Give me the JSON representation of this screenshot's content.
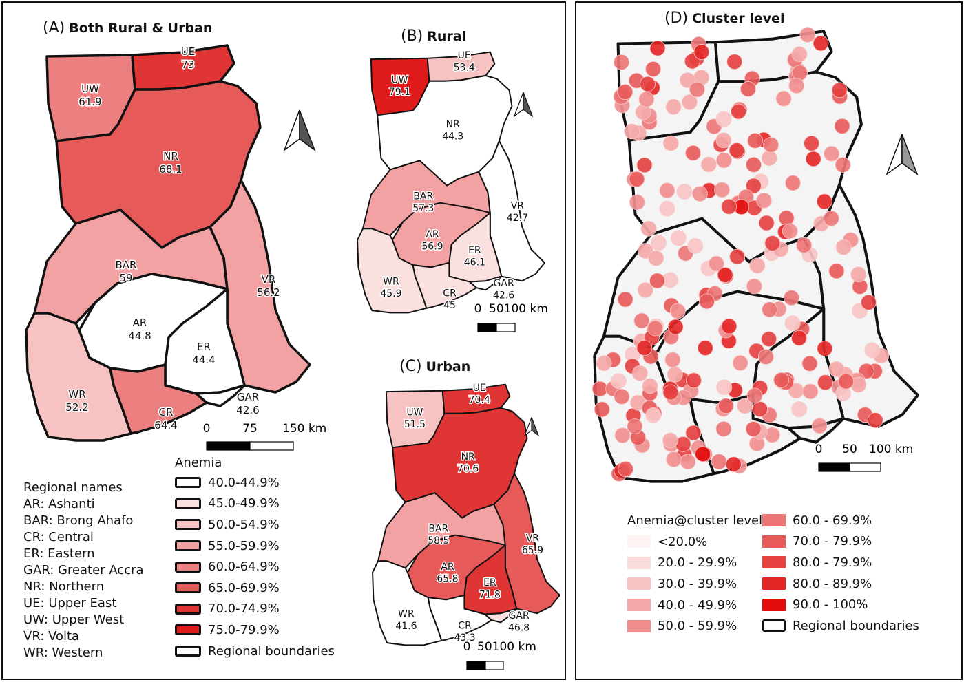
{
  "panels": {
    "A": {
      "letter": "(A)",
      "title": "Both Rural & Urban"
    },
    "B": {
      "letter": "(B)",
      "title": "Rural"
    },
    "C": {
      "letter": "(C)",
      "title": "Urban"
    },
    "D": {
      "letter": "(D)",
      "title": "Cluster level"
    }
  },
  "regions_A": [
    {
      "code": "UE",
      "value": "73"
    },
    {
      "code": "UW",
      "value": "61.9"
    },
    {
      "code": "NR",
      "value": "68.1"
    },
    {
      "code": "BAR",
      "value": "59"
    },
    {
      "code": "VR",
      "value": "56.2"
    },
    {
      "code": "AR",
      "value": "44.8"
    },
    {
      "code": "ER",
      "value": "44.4"
    },
    {
      "code": "WR",
      "value": "52.2"
    },
    {
      "code": "CR",
      "value": "64.4"
    },
    {
      "code": "GAR",
      "value": "42.6"
    }
  ],
  "regions_B": [
    {
      "code": "UE",
      "value": "53.4"
    },
    {
      "code": "UW",
      "value": "79.1"
    },
    {
      "code": "NR",
      "value": "44.3"
    },
    {
      "code": "BAR",
      "value": "57.3"
    },
    {
      "code": "VR",
      "value": "42.7"
    },
    {
      "code": "AR",
      "value": "56.9"
    },
    {
      "code": "ER",
      "value": "46.1"
    },
    {
      "code": "WR",
      "value": "45.9"
    },
    {
      "code": "CR",
      "value": "45"
    },
    {
      "code": "GAR",
      "value": "42.6"
    }
  ],
  "regions_C": [
    {
      "code": "UE",
      "value": "70.4"
    },
    {
      "code": "UW",
      "value": "51.5"
    },
    {
      "code": "NR",
      "value": "70.6"
    },
    {
      "code": "BAR",
      "value": "58.5"
    },
    {
      "code": "VR",
      "value": "65.9"
    },
    {
      "code": "AR",
      "value": "65.8"
    },
    {
      "code": "ER",
      "value": "71.8"
    },
    {
      "code": "WR",
      "value": "41.6"
    },
    {
      "code": "CR",
      "value": "43.3"
    },
    {
      "code": "GAR",
      "value": "46.8"
    }
  ],
  "scalebars": {
    "A": {
      "ticks": [
        "0",
        "75",
        "150 km"
      ]
    },
    "B": {
      "ticks": [
        "0",
        "50100 km"
      ]
    },
    "C": {
      "ticks": [
        "0",
        "50100 km"
      ]
    },
    "D": {
      "ticks": [
        "0",
        "50",
        "100 km"
      ]
    }
  },
  "legend_regional": {
    "title": "Regional names",
    "items": [
      "AR: Ashanti",
      "BAR: Brong Ahafo",
      "CR: Central",
      "ER: Eastern",
      "GAR: Greater Accra",
      "NR: Northern",
      "UE: Upper East",
      "UW: Upper West",
      "VR: Volta",
      "WR: Western"
    ]
  },
  "legend_anemia": {
    "title": "Anemia",
    "items": [
      {
        "label": "40.0-44.9%",
        "color": "#ffffff"
      },
      {
        "label": "45.0-49.9%",
        "color": "#fbe0e0"
      },
      {
        "label": "50.0-54.9%",
        "color": "#f7c2c2"
      },
      {
        "label": "55.0-59.9%",
        "color": "#f2a2a2"
      },
      {
        "label": "60.0-64.9%",
        "color": "#ec7f7f"
      },
      {
        "label": "65.0-69.9%",
        "color": "#e65a5a"
      },
      {
        "label": "70.0-74.9%",
        "color": "#df3535"
      },
      {
        "label": "75.0-79.9%",
        "color": "#e01b1b"
      },
      {
        "label": "Regional boundaries",
        "color": "#ffffff"
      }
    ]
  },
  "legend_cluster": {
    "title": "Anemia@cluster level",
    "col1": [
      {
        "label": "<20.0%",
        "color": "#fdf3f3"
      },
      {
        "label": "20.0 - 29.9%",
        "color": "#fbdcdc"
      },
      {
        "label": "30.0 - 39.9%",
        "color": "#f8c4c4"
      },
      {
        "label": "40.0 - 49.9%",
        "color": "#f4a8a8"
      },
      {
        "label": "50.0 - 59.9%",
        "color": "#f08e8e"
      }
    ],
    "col2": [
      {
        "label": "60.0 - 69.9%",
        "color": "#ec7575"
      },
      {
        "label": "70.0 - 79.9%",
        "color": "#e85a5a"
      },
      {
        "label": "80.0 - 79.9%",
        "color": "#e54141"
      },
      {
        "label": "80.0 - 89.9%",
        "color": "#e32727"
      },
      {
        "label": "90.0 - 100%",
        "color": "#e30d0d"
      },
      {
        "label": "Regional boundaries",
        "color": "#ffffff"
      }
    ]
  },
  "fills": {
    "A": {
      "UE": "#df3535",
      "UW": "#ec7f7f",
      "NR": "#e65a5a",
      "BAR": "#f2a2a2",
      "VR": "#f2a2a2",
      "AR": "#ffffff",
      "ER": "#ffffff",
      "WR": "#f7c2c2",
      "CR": "#ec7f7f",
      "GAR": "#ffffff"
    },
    "B": {
      "UE": "#f7c2c2",
      "UW": "#e01b1b",
      "NR": "#ffffff",
      "BAR": "#f2a2a2",
      "VR": "#ffffff",
      "AR": "#f2a2a2",
      "ER": "#fbe0e0",
      "WR": "#fbe0e0",
      "CR": "#fbe0e0",
      "GAR": "#ffffff"
    },
    "C": {
      "UE": "#df3535",
      "UW": "#f7c2c2",
      "NR": "#df3535",
      "BAR": "#f2a2a2",
      "VR": "#e65a5a",
      "AR": "#e65a5a",
      "ER": "#df3535",
      "WR": "#ffffff",
      "CR": "#ffffff",
      "GAR": "#fbe0e0"
    },
    "D_land": "#f4f4f4"
  }
}
